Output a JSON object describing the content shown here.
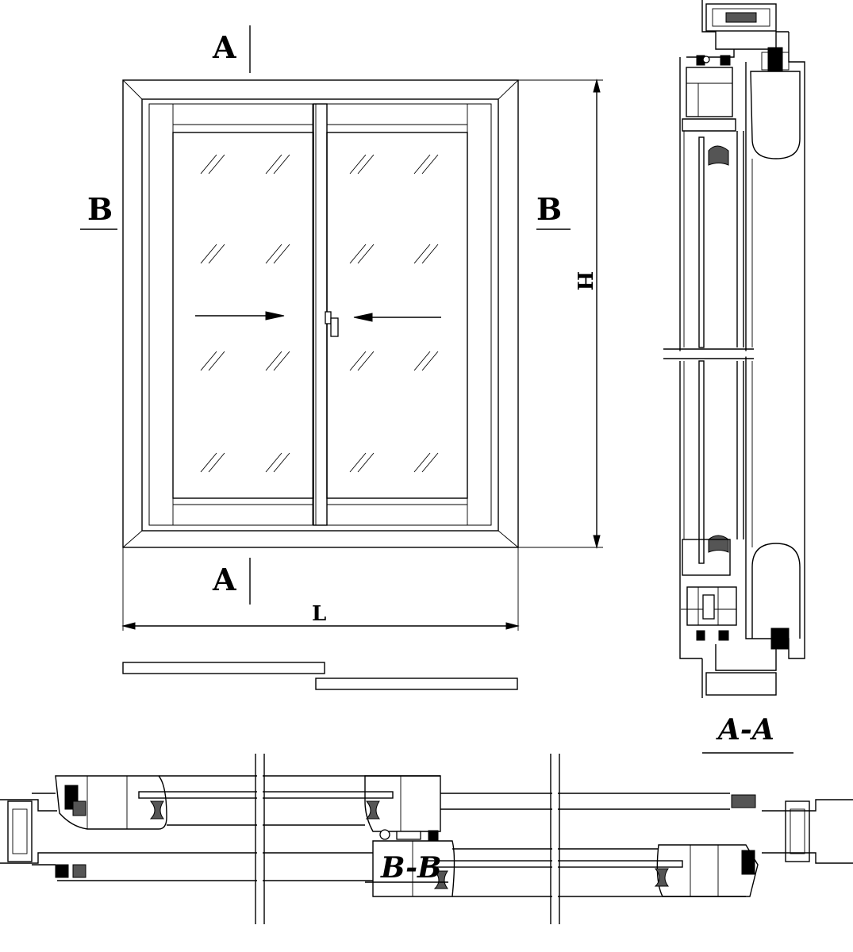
{
  "labels": {
    "section_a_top": "A",
    "section_a_bottom": "A",
    "section_b_left": "B",
    "section_b_right": "B",
    "height_dimension": "H",
    "length_dimension": "L",
    "vertical_section_title": "A-A",
    "horizontal_section_title": "B-B"
  },
  "colors": {
    "line": "#000000",
    "background": "#ffffff"
  }
}
